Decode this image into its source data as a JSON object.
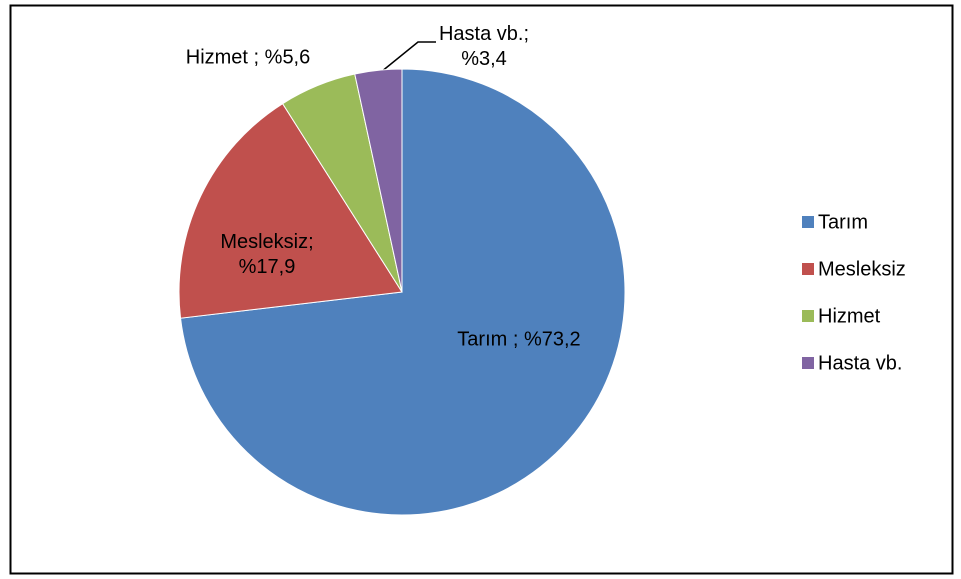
{
  "chart_data": {
    "type": "pie",
    "categories": [
      "Tarım",
      "Mesleksiz",
      "Hizmet",
      "Hasta vb."
    ],
    "values": [
      73.2,
      17.9,
      5.6,
      3.4
    ],
    "value_labels": [
      "Tarım ; %73,2",
      "Mesleksiz; %17,9",
      "Hizmet ; %5,6",
      "Hasta vb.; %3,4"
    ],
    "colors": [
      "#4f81bd",
      "#c0504d",
      "#9bbb59",
      "#8064a2"
    ],
    "legend": "right"
  }
}
